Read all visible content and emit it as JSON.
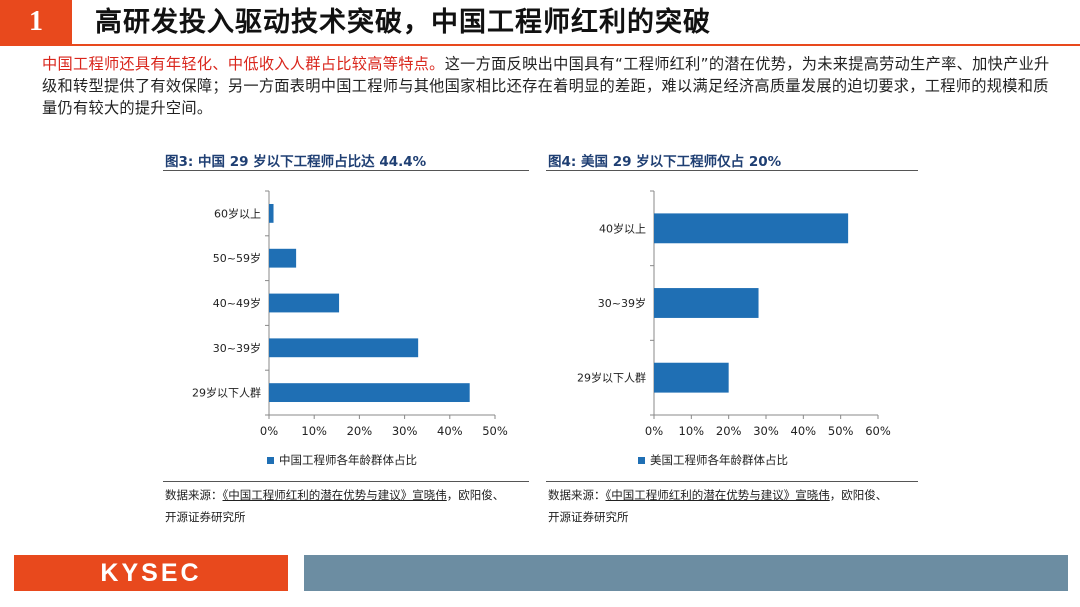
{
  "slide": {
    "number": "1",
    "title": "高研发投入驱动技术突破，中国工程师红利的突破",
    "intro_highlight": "中国工程师还具有年轻化、中低收入人群占比较高等特点。",
    "intro_rest": "这一方面反映出中国具有“工程师红利”的潜在优势，为未来提高劳动生产率、加快产业升级和转型提供了有效保障；另一方面表明中国工程师与其他国家相比还存在着明显的差距，难以满足经济高质量发展的迫切要求，工程师的规模和质量仍有较大的提升空间。"
  },
  "footer": {
    "logo": "KYSEC"
  },
  "colors": {
    "accent": "#e8491d",
    "bar": "#1f6fb4",
    "footer_band": "#6c8da2",
    "chart_title": "#1f3f73"
  },
  "charts": [
    {
      "title": "图3: 中国 29 岁以下工程师占比达 44.4%",
      "source_prefix": "数据来源：",
      "source_underlined": "《中国工程师红利的潜在优势与建议》宣晓伟",
      "source_suffix": "，欧阳俊、",
      "source_line2": "开源证券研究所"
    },
    {
      "title": "图4: 美国 29 岁以下工程师仅占 20%",
      "source_prefix": "数据来源：",
      "source_underlined": "《中国工程师红利的潜在优势与建议》宣晓伟",
      "source_suffix": "，欧阳俊、",
      "source_line2": "开源证券研究所"
    }
  ],
  "chart_data": [
    {
      "type": "bar",
      "orientation": "horizontal",
      "categories": [
        "60岁以上",
        "50~59岁",
        "40~49岁",
        "30~39岁",
        "29岁以下人群"
      ],
      "series": [
        {
          "name": "中国工程师各年龄群体占比",
          "values": [
            1,
            6,
            15.5,
            33,
            44.4
          ]
        }
      ],
      "xlim": [
        0,
        50
      ],
      "xticks": [
        "0%",
        "10%",
        "20%",
        "30%",
        "40%",
        "50%"
      ],
      "legend_position": "bottom",
      "grid": false
    },
    {
      "type": "bar",
      "orientation": "horizontal",
      "categories": [
        "40岁以上",
        "30~39岁",
        "29岁以下人群"
      ],
      "series": [
        {
          "name": "美国工程师各年龄群体占比",
          "values": [
            52,
            28,
            20
          ]
        }
      ],
      "xlim": [
        0,
        60
      ],
      "xticks": [
        "0%",
        "10%",
        "20%",
        "30%",
        "40%",
        "50%",
        "60%"
      ],
      "legend_position": "bottom",
      "grid": false
    }
  ]
}
